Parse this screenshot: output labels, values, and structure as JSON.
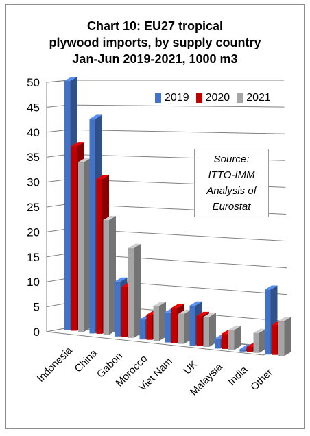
{
  "chart_data": {
    "type": "bar",
    "title": "Chart 10: EU27 tropical plywood imports, by supply country Jan-Jun 2019-2021, 1000 m3",
    "title_lines": [
      "Chart 10: EU27 tropical",
      "plywood imports, by supply country",
      "Jan-Jun 2019-2021, 1000 m3"
    ],
    "categories": [
      "Indonesia",
      "China",
      "Gabon",
      "Morocco",
      "Viet Nam",
      "UK",
      "Malaysia",
      "India",
      "Other"
    ],
    "series": [
      {
        "name": "2019",
        "color": "#4472c4",
        "values": [
          50,
          43,
          11,
          4,
          6,
          8,
          2,
          0.5,
          13
        ]
      },
      {
        "name": "2020",
        "color": "#c00000",
        "values": [
          37,
          31,
          10,
          5,
          7,
          6,
          3,
          1,
          6
        ]
      },
      {
        "name": "2021",
        "color": "#a6a6a6",
        "values": [
          34,
          23,
          18,
          7,
          6,
          6,
          4,
          4,
          7
        ]
      }
    ],
    "yticks": [
      0,
      5,
      10,
      15,
      20,
      25,
      30,
      35,
      40,
      45,
      50
    ],
    "ylim": [
      0,
      50
    ],
    "grid": true,
    "legend": "top-right",
    "annotation": [
      "Source:",
      "ITTO-IMM",
      "Analysis of",
      "Eurostat"
    ]
  }
}
